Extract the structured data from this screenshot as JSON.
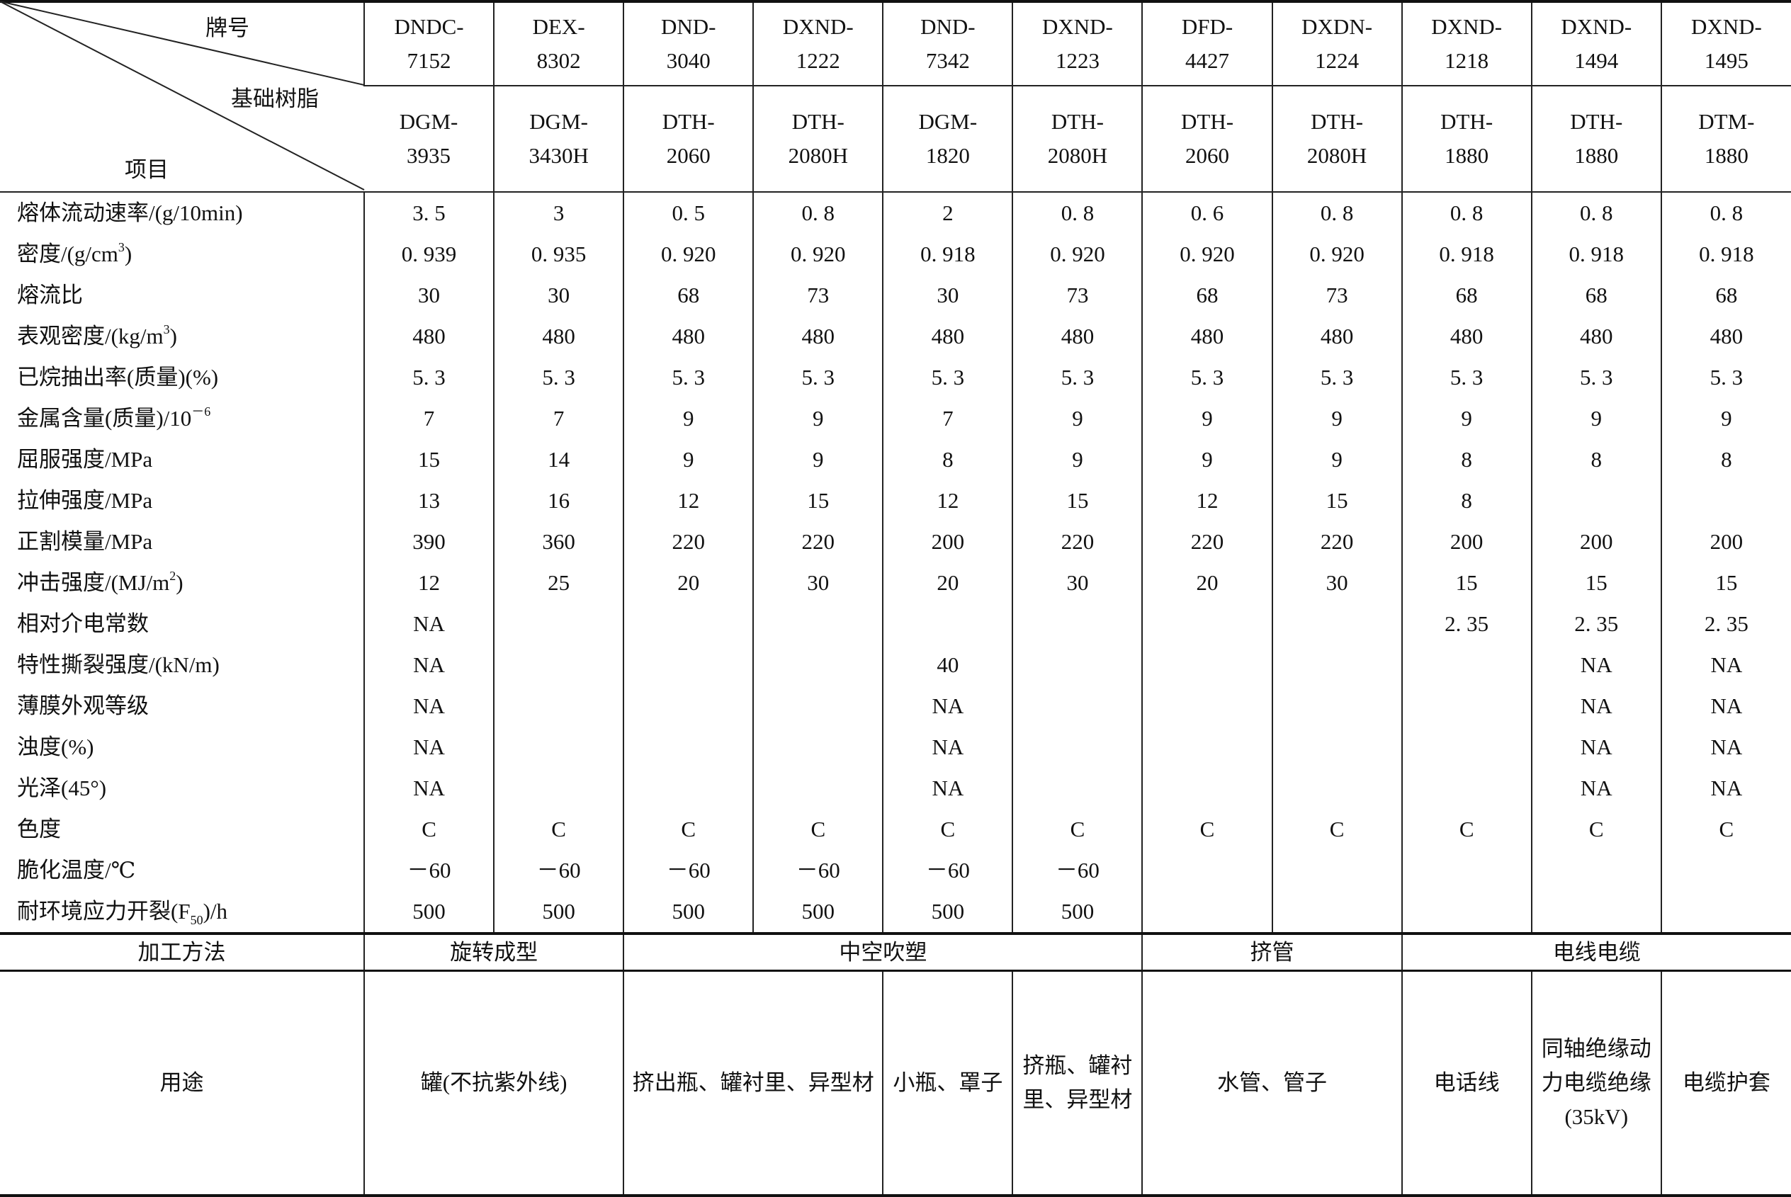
{
  "header": {
    "brand_label": "牌号",
    "resin_label": "基础树脂",
    "item_label": "项目",
    "brands": [
      [
        "DNDC-",
        "7152"
      ],
      [
        "DEX-",
        "8302"
      ],
      [
        "DND-",
        "3040"
      ],
      [
        "DXND-",
        "1222"
      ],
      [
        "DND-",
        "7342"
      ],
      [
        "DXND-",
        "1223"
      ],
      [
        "DFD-",
        "4427"
      ],
      [
        "DXDN-",
        "1224"
      ],
      [
        "DXND-",
        "1218"
      ],
      [
        "DXND-",
        "1494"
      ],
      [
        "DXND-",
        "1495"
      ]
    ],
    "resins": [
      [
        "DGM-",
        "3935"
      ],
      [
        "DGM-",
        "3430H"
      ],
      [
        "DTH-",
        "2060"
      ],
      [
        "DTH-",
        "2080H"
      ],
      [
        "DGM-",
        "1820"
      ],
      [
        "DTH-",
        "2080H"
      ],
      [
        "DTH-",
        "2060"
      ],
      [
        "DTH-",
        "2080H"
      ],
      [
        "DTH-",
        "1880"
      ],
      [
        "DTH-",
        "1880"
      ],
      [
        "DTM-",
        "1880"
      ]
    ]
  },
  "rows": [
    {
      "label": {
        "pre": "熔体流动速率/(g/10min)"
      },
      "values": [
        "3. 5",
        "3",
        "0. 5",
        "0. 8",
        "2",
        "0. 8",
        "0. 6",
        "0. 8",
        "0. 8",
        "0. 8",
        "0. 8"
      ]
    },
    {
      "label": {
        "pre": "密度/(g/cm",
        "sup": "3",
        "post": ")"
      },
      "values": [
        "0. 939",
        "0. 935",
        "0. 920",
        "0. 920",
        "0. 918",
        "0. 920",
        "0. 920",
        "0. 920",
        "0. 918",
        "0. 918",
        "0. 918"
      ]
    },
    {
      "label": {
        "pre": "熔流比"
      },
      "values": [
        "30",
        "30",
        "68",
        "73",
        "30",
        "73",
        "68",
        "73",
        "68",
        "68",
        "68"
      ]
    },
    {
      "label": {
        "pre": "表观密度/(kg/m",
        "sup": "3",
        "post": ")"
      },
      "values": [
        "480",
        "480",
        "480",
        "480",
        "480",
        "480",
        "480",
        "480",
        "480",
        "480",
        "480"
      ]
    },
    {
      "label": {
        "pre": "已烷抽出率(质量)(%)"
      },
      "values": [
        "5. 3",
        "5. 3",
        "5. 3",
        "5. 3",
        "5. 3",
        "5. 3",
        "5. 3",
        "5. 3",
        "5. 3",
        "5. 3",
        "5. 3"
      ]
    },
    {
      "label": {
        "pre": "金属含量(质量)/10",
        "sup": "－6"
      },
      "values": [
        "7",
        "7",
        "9",
        "9",
        "7",
        "9",
        "9",
        "9",
        "9",
        "9",
        "9"
      ]
    },
    {
      "label": {
        "pre": "屈服强度/MPa"
      },
      "values": [
        "15",
        "14",
        "9",
        "9",
        "8",
        "9",
        "9",
        "9",
        "8",
        "8",
        "8"
      ]
    },
    {
      "label": {
        "pre": "拉伸强度/MPa"
      },
      "values": [
        "13",
        "16",
        "12",
        "15",
        "12",
        "15",
        "12",
        "15",
        "8",
        "",
        ""
      ]
    },
    {
      "label": {
        "pre": "正割模量/MPa"
      },
      "values": [
        "390",
        "360",
        "220",
        "220",
        "200",
        "220",
        "220",
        "220",
        "200",
        "200",
        "200"
      ]
    },
    {
      "label": {
        "pre": "冲击强度/(MJ/m",
        "sup": "2",
        "post": ")"
      },
      "values": [
        "12",
        "25",
        "20",
        "30",
        "20",
        "30",
        "20",
        "30",
        "15",
        "15",
        "15"
      ]
    },
    {
      "label": {
        "pre": "相对介电常数"
      },
      "values": [
        "NA",
        "",
        "",
        "",
        "",
        "",
        "",
        "",
        "2. 35",
        "2. 35",
        "2. 35"
      ]
    },
    {
      "label": {
        "pre": "特性撕裂强度/(kN/m)"
      },
      "values": [
        "NA",
        "",
        "",
        "",
        "40",
        "",
        "",
        "",
        "",
        "NA",
        "NA"
      ]
    },
    {
      "label": {
        "pre": "薄膜外观等级"
      },
      "values": [
        "NA",
        "",
        "",
        "",
        "NA",
        "",
        "",
        "",
        "",
        "NA",
        "NA"
      ]
    },
    {
      "label": {
        "pre": "浊度(%)"
      },
      "values": [
        "NA",
        "",
        "",
        "",
        "NA",
        "",
        "",
        "",
        "",
        "NA",
        "NA"
      ]
    },
    {
      "label": {
        "pre": "光泽(45°)"
      },
      "values": [
        "NA",
        "",
        "",
        "",
        "NA",
        "",
        "",
        "",
        "",
        "NA",
        "NA"
      ]
    },
    {
      "label": {
        "pre": "色度"
      },
      "values": [
        "C",
        "C",
        "C",
        "C",
        "C",
        "C",
        "C",
        "C",
        "C",
        "C",
        "C"
      ]
    },
    {
      "label": {
        "pre": "脆化温度/℃"
      },
      "values": [
        "－60",
        "－60",
        "－60",
        "－60",
        "－60",
        "－60",
        "",
        "",
        "",
        "",
        ""
      ]
    },
    {
      "label": {
        "pre": "耐环境应力开裂(F",
        "sub": "50",
        "post": ")/h"
      },
      "values": [
        "500",
        "500",
        "500",
        "500",
        "500",
        "500",
        "",
        "",
        "",
        "",
        ""
      ]
    }
  ],
  "processing": {
    "label": "加工方法",
    "groups": [
      {
        "text": "旋转成型",
        "span": 2
      },
      {
        "text": "中空吹塑",
        "span": 4
      },
      {
        "text": "挤管",
        "span": 2
      },
      {
        "text": "电线电缆",
        "span": 3
      }
    ]
  },
  "usage": {
    "label": "用途",
    "groups": [
      {
        "lines": [
          "罐(不抗紫外线)"
        ],
        "span": 2
      },
      {
        "lines": [
          "挤出瓶、罐衬里、异型材"
        ],
        "span": 2
      },
      {
        "lines": [
          "小瓶、罩子"
        ],
        "span": 1
      },
      {
        "lines": [
          "挤瓶、罐衬",
          "里、异型材"
        ],
        "span": 1
      },
      {
        "lines": [
          "水管、管子"
        ],
        "span": 2
      },
      {
        "lines": [
          "电话线"
        ],
        "span": 1
      },
      {
        "lines": [
          "同轴绝缘动",
          "力电缆绝缘",
          "(35kV)"
        ],
        "span": 1
      },
      {
        "lines": [
          "电缆护套"
        ],
        "span": 1
      }
    ]
  }
}
